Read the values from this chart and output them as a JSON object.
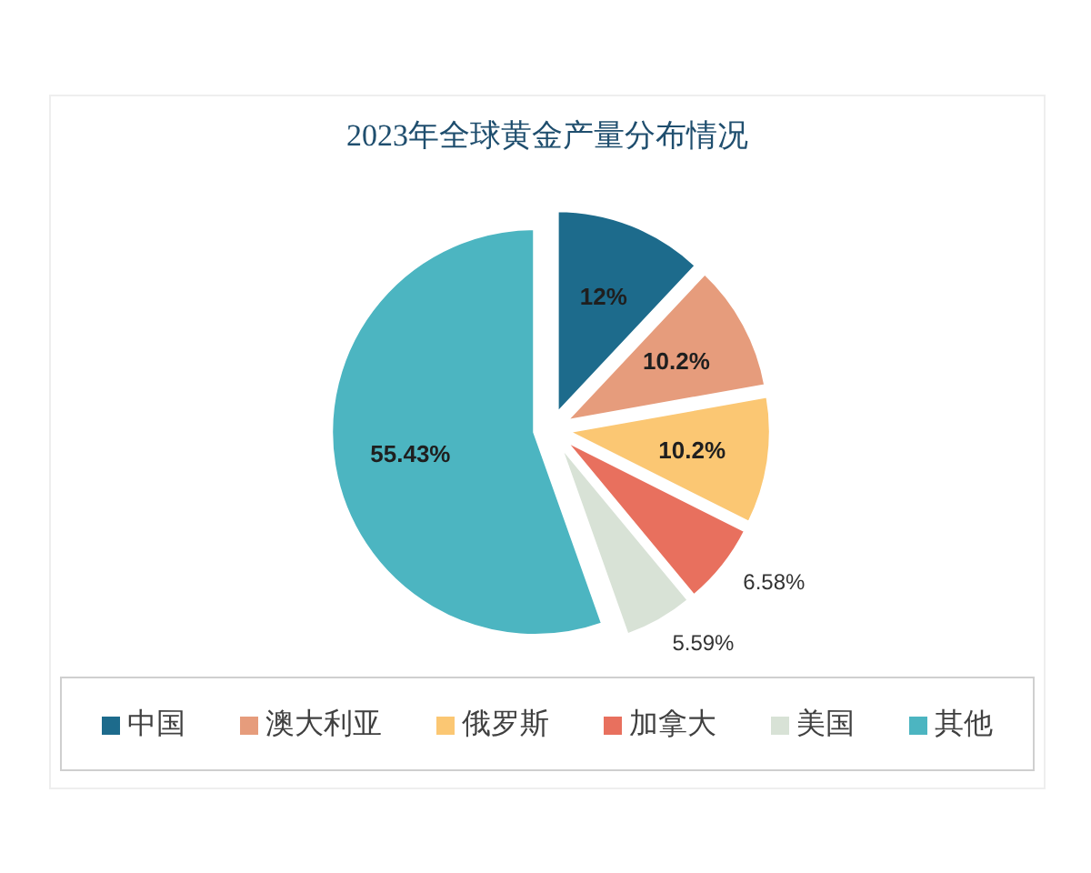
{
  "chart_data": {
    "type": "pie",
    "title": "2023年全球黄金产量分布情况",
    "categories": [
      "中国",
      "澳大利亚",
      "俄罗斯",
      "加拿大",
      "美国",
      "其他"
    ],
    "values": [
      12,
      10.2,
      10.2,
      6.58,
      5.59,
      55.43
    ],
    "colors": [
      "#1d6b8c",
      "#e69c7c",
      "#fbc773",
      "#e8705e",
      "#d8e2d6",
      "#4cb5c1"
    ],
    "value_labels": [
      "12%",
      "10.2%",
      "10.2%",
      "6.58%",
      "5.59%",
      "55.43%"
    ],
    "legend": "bottom"
  }
}
